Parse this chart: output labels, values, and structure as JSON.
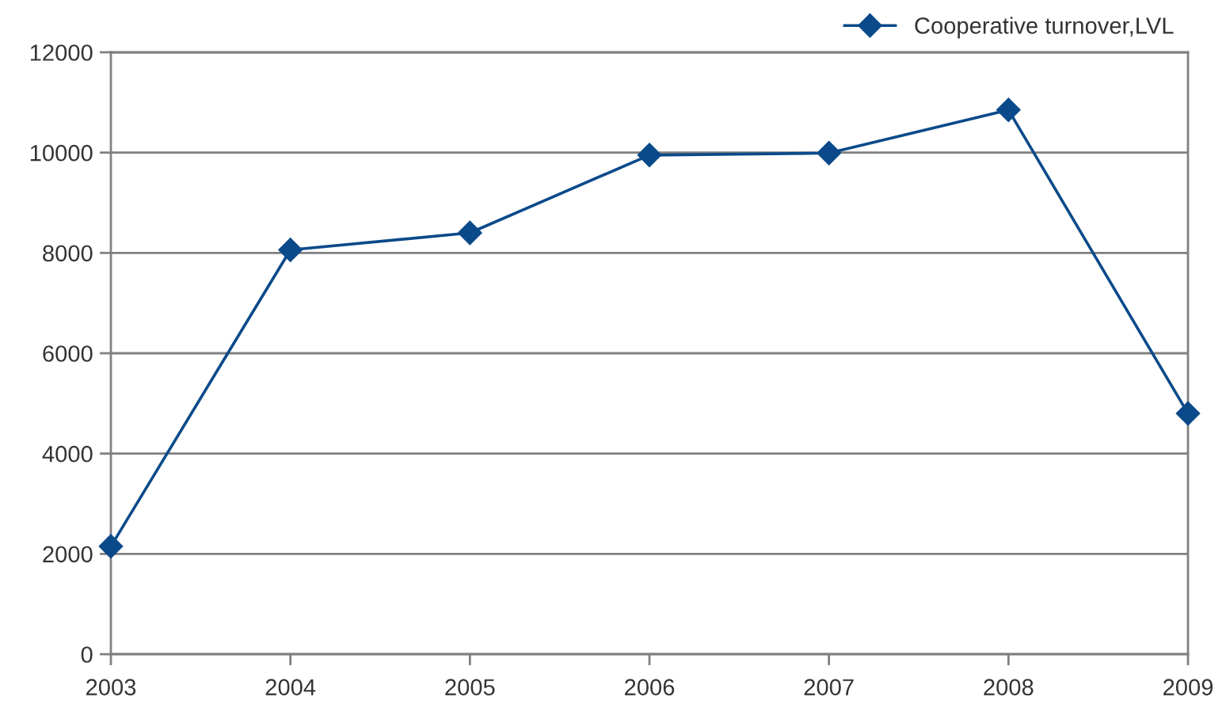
{
  "chart_data": {
    "type": "line",
    "categories": [
      "2003",
      "2004",
      "2005",
      "2006",
      "2007",
      "2008",
      "2009"
    ],
    "series": [
      {
        "name": "Cooperative turnover,LVL",
        "color": "#0b4a8a",
        "values": [
          2150,
          8060,
          8400,
          9950,
          9990,
          10850,
          4800
        ]
      }
    ],
    "ylim": [
      0,
      12000
    ],
    "yticks": [
      0,
      2000,
      4000,
      6000,
      8000,
      10000,
      12000
    ],
    "grid": "y",
    "legend": "top right",
    "marker": "diamond",
    "line_style": "solid"
  }
}
